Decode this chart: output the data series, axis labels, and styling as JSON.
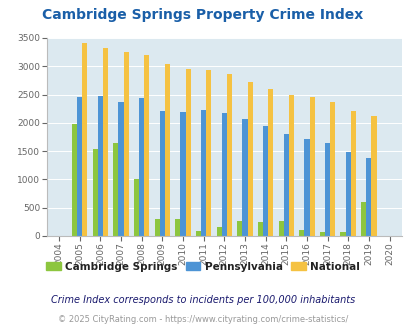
{
  "title": "Cambridge Springs Property Crime Index",
  "years": [
    2004,
    2005,
    2006,
    2007,
    2008,
    2009,
    2010,
    2011,
    2012,
    2013,
    2014,
    2015,
    2016,
    2017,
    2018,
    2019,
    2020
  ],
  "cambridge_springs": [
    0,
    1975,
    1530,
    1635,
    1010,
    295,
    295,
    90,
    165,
    270,
    250,
    270,
    110,
    70,
    70,
    600,
    0
  ],
  "pennsylvania": [
    0,
    2460,
    2470,
    2375,
    2440,
    2205,
    2185,
    2235,
    2165,
    2075,
    1950,
    1800,
    1710,
    1635,
    1490,
    1385,
    0
  ],
  "national": [
    0,
    3410,
    3330,
    3250,
    3200,
    3045,
    2950,
    2925,
    2855,
    2720,
    2590,
    2490,
    2460,
    2375,
    2200,
    2115,
    0
  ],
  "cambridge_color": "#8dc63f",
  "pennsylvania_color": "#4d94d5",
  "national_color": "#f5c242",
  "bg_color": "#dce9f0",
  "title_color": "#1a5fa8",
  "subtitle": "Crime Index corresponds to incidents per 100,000 inhabitants",
  "footer": "© 2025 CityRating.com - https://www.cityrating.com/crime-statistics/",
  "ylim": [
    0,
    3500
  ],
  "yticks": [
    0,
    500,
    1000,
    1500,
    2000,
    2500,
    3000,
    3500
  ]
}
